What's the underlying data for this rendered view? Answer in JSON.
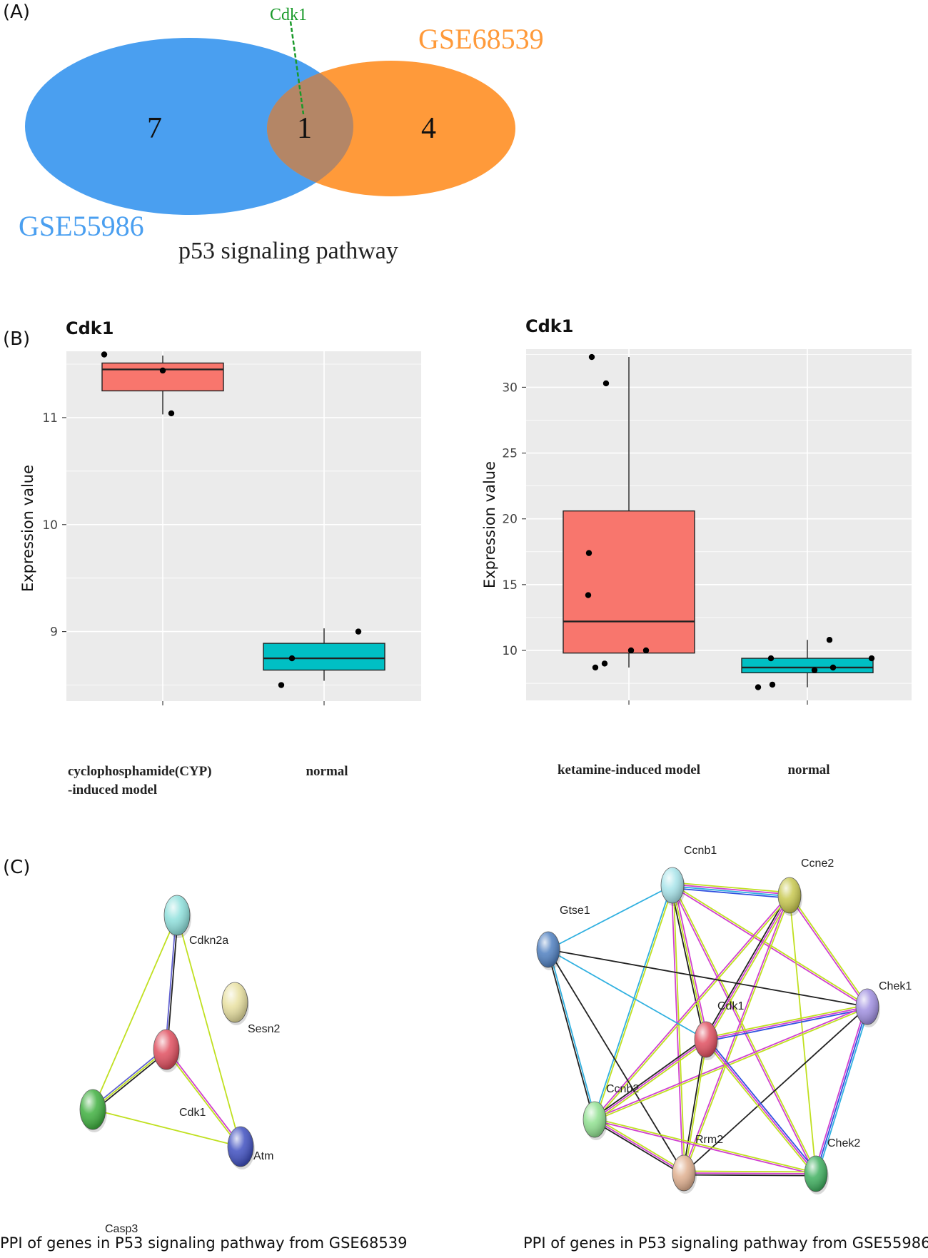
{
  "panels": {
    "a": "(A)",
    "b": "(B)",
    "c": "(C)"
  },
  "venn": {
    "left_label": "GSE55986",
    "right_label": "GSE68539",
    "left_count": "7",
    "overlap_count": "1",
    "right_count": "4",
    "overlap_gene": "Cdk1",
    "caption": "p53 signaling pathway",
    "colors": {
      "left": "#4a9ff0",
      "right": "#ff9a3a",
      "overlap": "#b48666",
      "line": "#1a9a2a"
    }
  },
  "chart_data": [
    {
      "type": "box",
      "title": "Cdk1",
      "xlabel": "",
      "ylabel": "Expression value",
      "categories": [
        "cyclophosphamide(CYP)\n-induced model",
        "normal"
      ],
      "ylim": [
        8.35,
        11.62
      ],
      "yticks": [
        9,
        10,
        11
      ],
      "boxes": [
        {
          "q1": 11.25,
          "median": 11.45,
          "q3": 11.51,
          "whisker_low": 11.03,
          "whisker_high": 11.58,
          "points": [
            11.59,
            11.44,
            11.04
          ],
          "color": "#f8766d"
        },
        {
          "q1": 8.64,
          "median": 8.75,
          "q3": 8.89,
          "whisker_low": 8.54,
          "whisker_high": 9.03,
          "points": [
            8.75,
            8.5,
            9.0
          ],
          "color": "#00bfc4"
        }
      ]
    },
    {
      "type": "box",
      "title": "Cdk1",
      "xlabel": "",
      "ylabel": "Expression value",
      "categories": [
        "ketamine-induced model",
        "normal"
      ],
      "ylim": [
        6.2,
        32.9
      ],
      "yticks": [
        10,
        15,
        20,
        25,
        30
      ],
      "boxes": [
        {
          "q1": 9.8,
          "median": 12.2,
          "q3": 20.6,
          "whisker_low": 8.7,
          "whisker_high": 32.3,
          "points": [
            32.3,
            30.3,
            17.4,
            14.2,
            10.0,
            10.0,
            9.0,
            8.7
          ],
          "color": "#f8766d"
        },
        {
          "q1": 8.3,
          "median": 8.7,
          "q3": 9.4,
          "whisker_low": 7.2,
          "whisker_high": 10.8,
          "points": [
            10.8,
            9.4,
            9.4,
            8.7,
            8.5,
            7.4,
            7.2
          ],
          "color": "#00bfc4"
        }
      ]
    }
  ],
  "networks": [
    {
      "caption": "PPI of genes in P53 signaling pathway from GSE68539",
      "nodes": [
        {
          "name": "Cdkn2a",
          "color": "#8fe0dc"
        },
        {
          "name": "Sesn2",
          "color": "#e8e0a0"
        },
        {
          "name": "Cdk1",
          "color": "#e05060"
        },
        {
          "name": "Casp3",
          "color": "#40b040"
        },
        {
          "name": "Atm",
          "color": "#4050c0"
        }
      ]
    },
    {
      "caption": "PPI of genes in P53 signaling pathway from GSE55986",
      "nodes": [
        {
          "name": "Ccnb1",
          "color": "#a8e4ea"
        },
        {
          "name": "Ccne2",
          "color": "#c8c850"
        },
        {
          "name": "Gtse1",
          "color": "#5080c0"
        },
        {
          "name": "Chek1",
          "color": "#a090e0"
        },
        {
          "name": "Cdk1",
          "color": "#e05060"
        },
        {
          "name": "Ccnb2",
          "color": "#90e090"
        },
        {
          "name": "Rrm2",
          "color": "#e0b090"
        },
        {
          "name": "Chek2",
          "color": "#40b060"
        }
      ]
    }
  ]
}
